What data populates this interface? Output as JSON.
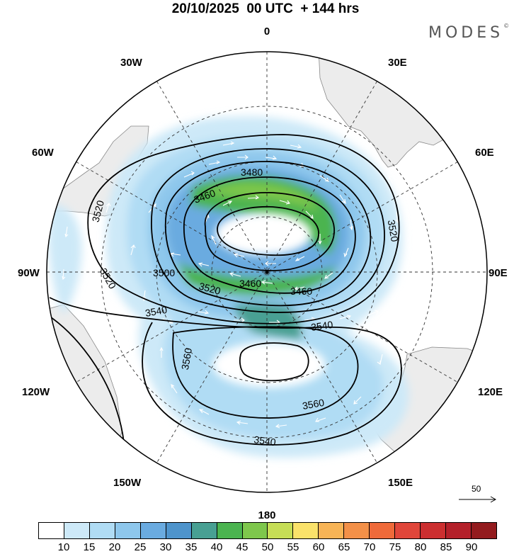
{
  "title": "20/10/2025  00 UTC  + 144 hrs",
  "brand": "MODES",
  "brand_mark": "©",
  "longitude_labels": {
    "top": "0",
    "bottom": "180",
    "left": "90W",
    "right": "90E",
    "w30": "30W",
    "e30": "30E",
    "w60": "60W",
    "e60": "60E",
    "w120": "120W",
    "e120": "120E",
    "w150": "150W",
    "e150": "150E"
  },
  "contour_labels": {
    "c3480": "3480",
    "c3460a": "3460",
    "c3460b": "3460",
    "c3460c": "3460",
    "c3500": "3500",
    "c3520a": "3520",
    "c3520b": "3520",
    "c3520c": "3520",
    "c3520d": "3520",
    "c3540a": "3540",
    "c3540b": "3540",
    "c3540c": "3540",
    "c3560a": "3560",
    "c3560b": "3560"
  },
  "reference_vector": "50",
  "colorbar": {
    "colors": [
      "#ffffff",
      "#cde9f8",
      "#b0dcf4",
      "#8ec7ec",
      "#6aabe0",
      "#4e94cc",
      "#48a093",
      "#4bb450",
      "#7ec74c",
      "#c6de56",
      "#fae26a",
      "#f7b456",
      "#f39048",
      "#ef6a3a",
      "#e0463a",
      "#cc2f30",
      "#b4202a",
      "#931b1e"
    ],
    "labels": [
      "10",
      "15",
      "20",
      "25",
      "30",
      "35",
      "40",
      "45",
      "50",
      "55",
      "60",
      "65",
      "70",
      "75",
      "80",
      "85",
      "90"
    ]
  }
}
